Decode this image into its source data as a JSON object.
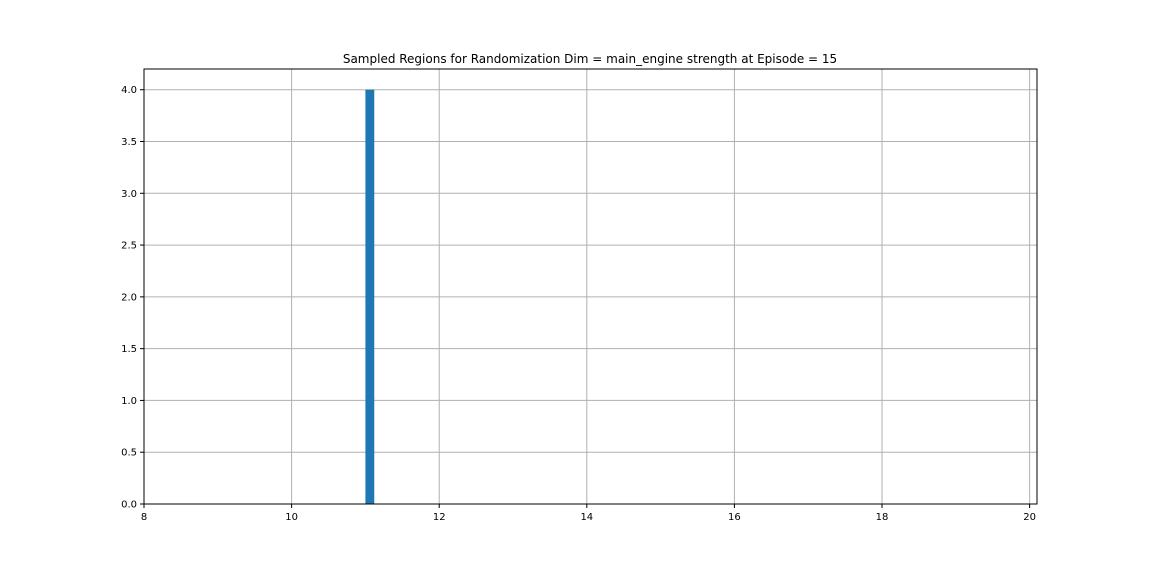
{
  "chart_data": {
    "type": "bar",
    "title": "Sampled Regions for Randomization Dim = main_engine strength at Episode = 15",
    "xlabel": "",
    "ylabel": "",
    "xlim": [
      8,
      20.1
    ],
    "ylim": [
      0,
      4.2
    ],
    "x_ticks": [
      8,
      10,
      12,
      14,
      16,
      18,
      20
    ],
    "y_ticks": [
      0.0,
      0.5,
      1.0,
      1.5,
      2.0,
      2.5,
      3.0,
      3.5,
      4.0
    ],
    "x_tick_labels": [
      "8",
      "10",
      "12",
      "14",
      "16",
      "18",
      "20"
    ],
    "y_tick_labels": [
      "0.0",
      "0.5",
      "1.0",
      "1.5",
      "2.0",
      "2.5",
      "3.0",
      "3.5",
      "4.0"
    ],
    "bars": [
      {
        "x0": 11.0,
        "x1": 11.12,
        "value": 4
      }
    ],
    "grid": true,
    "bar_color": "#1f77b4",
    "grid_color": "#b0b0b0"
  }
}
